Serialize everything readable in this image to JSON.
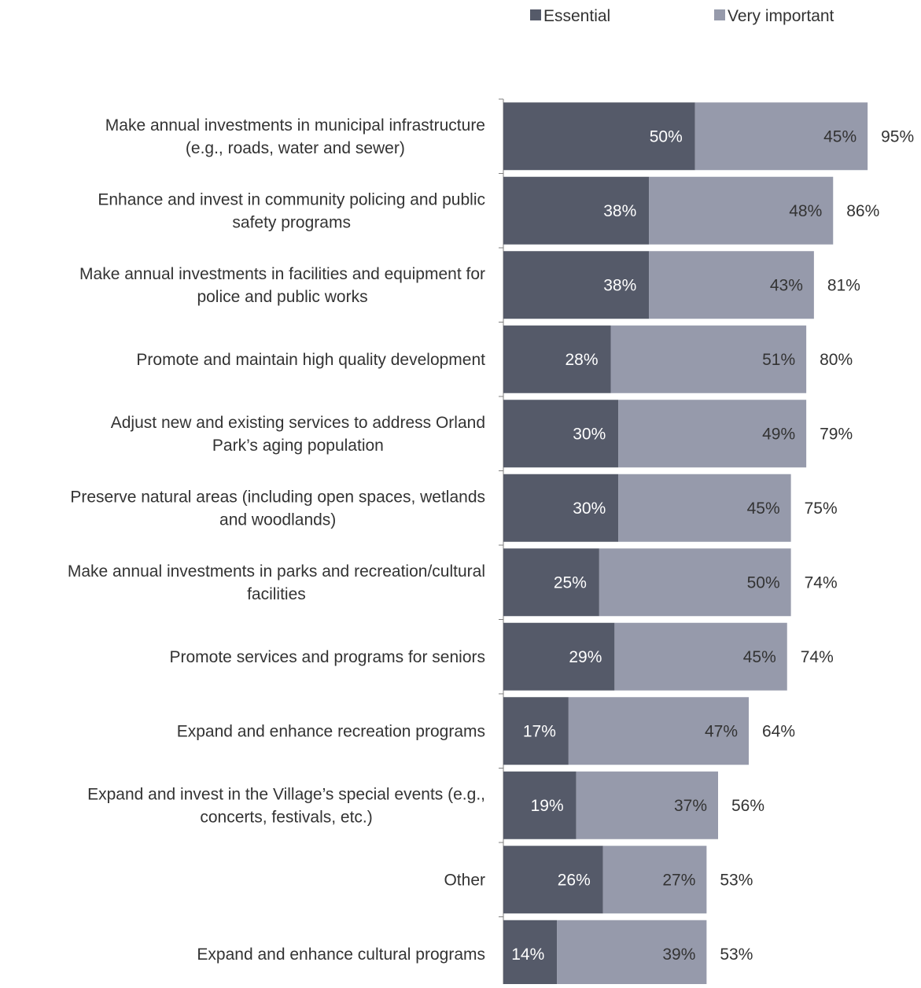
{
  "colors": {
    "essential": "#555a69",
    "very_important": "#969aab",
    "text": "#333333",
    "inner_label": "#ffffff",
    "axis": "#7f7f7f"
  },
  "chart_data": {
    "type": "bar",
    "orientation": "horizontal",
    "stacked": true,
    "value_format": "percent",
    "legend": {
      "position": "top-right",
      "entries": [
        "Essential",
        "Very important"
      ]
    },
    "xlim": [
      0,
      100
    ],
    "grid": false,
    "categories": [
      [
        "Make annual investments in municipal infrastructure",
        "(e.g., roads, water and sewer)"
      ],
      [
        "Enhance and invest in community policing and public",
        "safety programs"
      ],
      [
        "Make annual investments in facilities and equipment for",
        "police and public works"
      ],
      [
        "Promote and maintain high quality development"
      ],
      [
        "Adjust new and existing services to address Orland",
        "Park’s aging population"
      ],
      [
        "Preserve natural areas (including open spaces, wetlands",
        "and woodlands)"
      ],
      [
        "Make annual investments in parks and recreation/cultural",
        "facilities"
      ],
      [
        "Promote services and programs for seniors"
      ],
      [
        "Expand and enhance recreation programs"
      ],
      [
        "Expand and invest in the Village’s special events (e.g.,",
        "concerts, festivals, etc.)"
      ],
      [
        "Other"
      ],
      [
        "Expand and enhance cultural programs"
      ]
    ],
    "series": [
      {
        "name": "Essential",
        "values": [
          50,
          38,
          38,
          28,
          30,
          30,
          25,
          29,
          17,
          19,
          26,
          14
        ]
      },
      {
        "name": "Very important",
        "values": [
          45,
          48,
          43,
          51,
          49,
          45,
          50,
          45,
          47,
          37,
          27,
          39
        ]
      }
    ],
    "totals": [
      95,
      86,
      81,
      80,
      79,
      75,
      74,
      74,
      64,
      56,
      53,
      53
    ]
  }
}
